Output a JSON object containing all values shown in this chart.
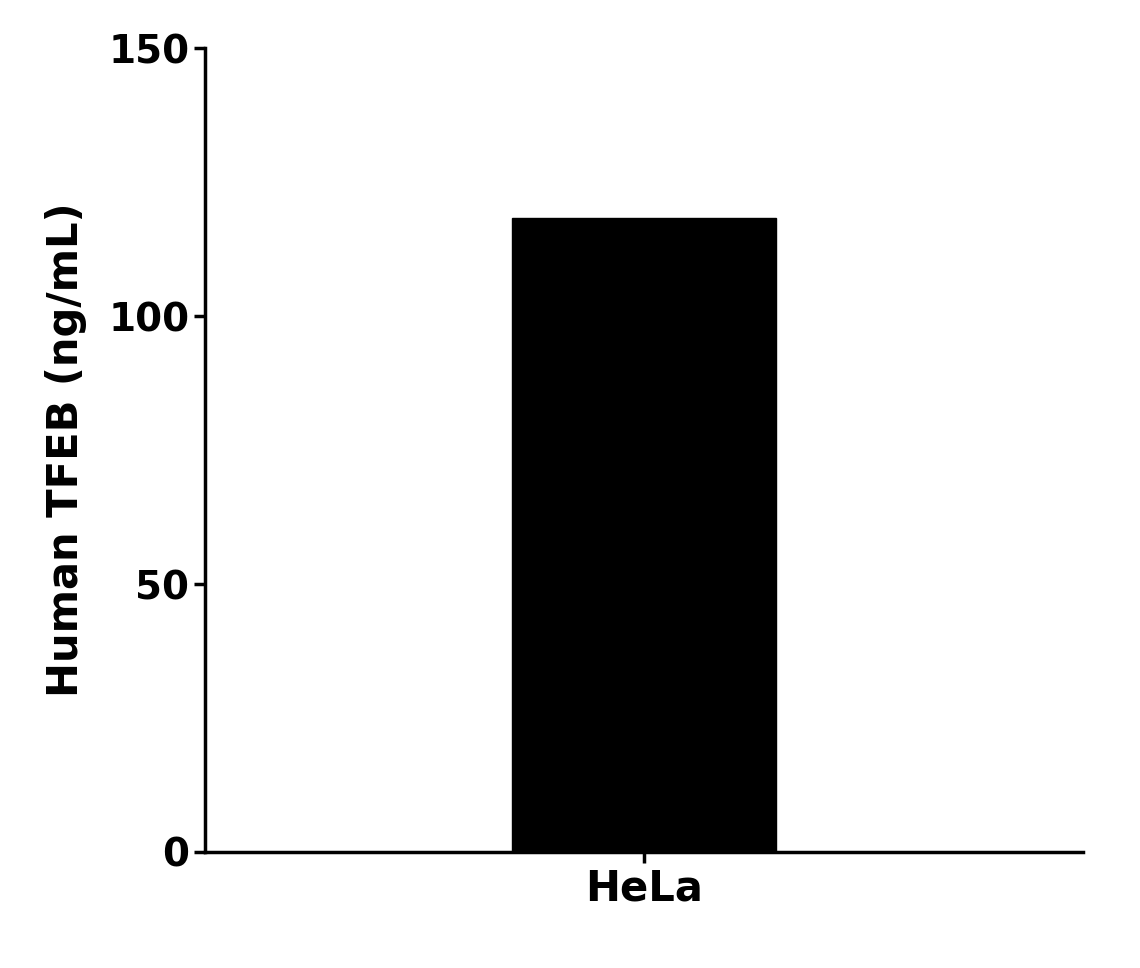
{
  "categories": [
    "HeLa"
  ],
  "values": [
    118.28
  ],
  "bar_color": "#000000",
  "ylabel": "Human TFEB (ng/mL)",
  "ylim": [
    0,
    150
  ],
  "yticks": [
    0,
    50,
    100,
    150
  ],
  "bar_width": 0.6,
  "background_color": "#ffffff",
  "ylabel_fontsize": 30,
  "xlabel_fontsize": 30,
  "tick_fontsize": 28,
  "tick_fontweight": "bold",
  "label_fontweight": "bold",
  "xlim": [
    -0.5,
    1.5
  ]
}
